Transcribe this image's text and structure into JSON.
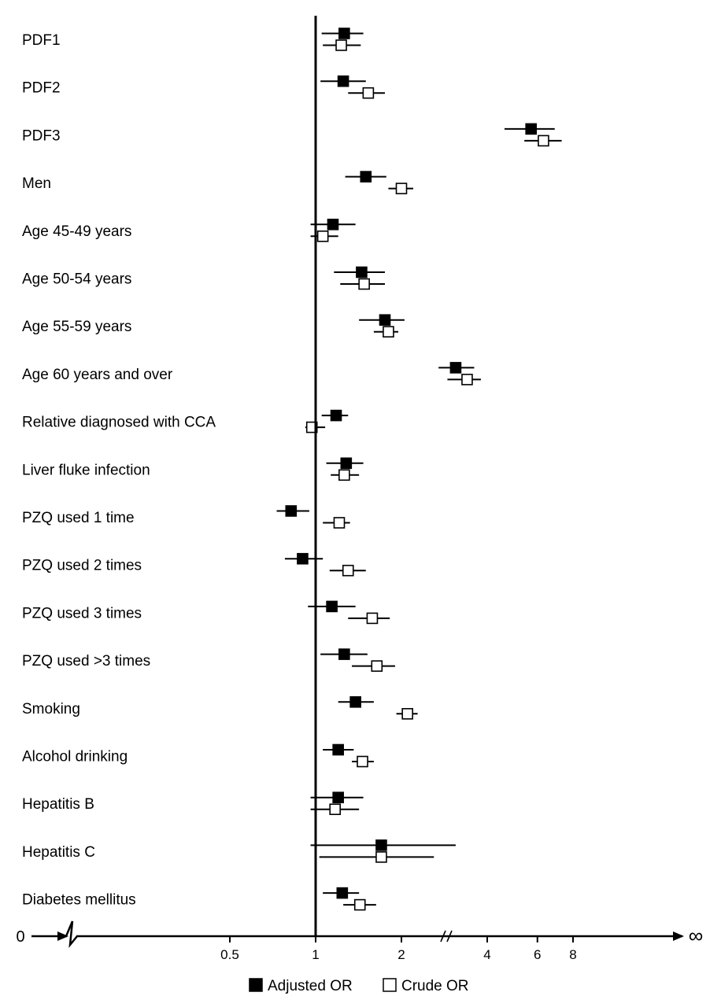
{
  "chart_data": {
    "type": "forest",
    "x_scale": "log2",
    "reference_line": 1,
    "legend": {
      "placement": "bottom-center",
      "adjusted_label": "Adjusted OR",
      "crude_label": "Crude OR"
    },
    "axis": {
      "left_end_label": "0",
      "right_end_label": "∞",
      "ticks": [
        {
          "value": 0.5,
          "label": "0.5"
        },
        {
          "value": 1,
          "label": "1"
        },
        {
          "value": 2,
          "label": "2"
        },
        {
          "value": 4,
          "label": "4"
        },
        {
          "value": 6,
          "label": "6"
        },
        {
          "value": 8,
          "label": "8"
        }
      ]
    },
    "series": [
      {
        "name": "Adjusted OR",
        "marker": "filled-square",
        "color": "#000000"
      },
      {
        "name": "Crude OR",
        "marker": "open-square",
        "color": "#000000"
      }
    ],
    "rows": [
      {
        "label": "PDF1",
        "adjusted": {
          "or": 1.26,
          "lo": 1.05,
          "hi": 1.47
        },
        "crude": {
          "or": 1.23,
          "lo": 1.06,
          "hi": 1.44
        }
      },
      {
        "label": "PDF2",
        "adjusted": {
          "or": 1.25,
          "lo": 1.04,
          "hi": 1.5
        },
        "crude": {
          "or": 1.53,
          "lo": 1.3,
          "hi": 1.75
        }
      },
      {
        "label": "PDF3",
        "adjusted": {
          "or": 5.7,
          "lo": 4.6,
          "hi": 6.9
        },
        "crude": {
          "or": 6.3,
          "lo": 5.4,
          "hi": 7.3
        }
      },
      {
        "label": "Men",
        "adjusted": {
          "or": 1.5,
          "lo": 1.27,
          "hi": 1.77
        },
        "crude": {
          "or": 2.0,
          "lo": 1.8,
          "hi": 2.2
        }
      },
      {
        "label": "Age 45-49 years",
        "adjusted": {
          "or": 1.15,
          "lo": 0.96,
          "hi": 1.38
        },
        "crude": {
          "or": 1.06,
          "lo": 0.96,
          "hi": 1.2
        }
      },
      {
        "label": "Age 50-54 years",
        "adjusted": {
          "or": 1.45,
          "lo": 1.16,
          "hi": 1.75
        },
        "crude": {
          "or": 1.48,
          "lo": 1.22,
          "hi": 1.75
        }
      },
      {
        "label": "Age 55-59 years",
        "adjusted": {
          "or": 1.75,
          "lo": 1.42,
          "hi": 2.05
        },
        "crude": {
          "or": 1.8,
          "lo": 1.6,
          "hi": 1.95
        }
      },
      {
        "label": "Age 60 years and over",
        "adjusted": {
          "or": 3.1,
          "lo": 2.7,
          "hi": 3.6
        },
        "crude": {
          "or": 3.4,
          "lo": 2.9,
          "hi": 3.8
        }
      },
      {
        "label": "Relative diagnosed with CCA",
        "adjusted": {
          "or": 1.18,
          "lo": 1.05,
          "hi": 1.3
        },
        "crude": {
          "or": 0.97,
          "lo": 0.92,
          "hi": 1.08
        }
      },
      {
        "label": "Liver fluke infection",
        "adjusted": {
          "or": 1.28,
          "lo": 1.09,
          "hi": 1.47
        },
        "crude": {
          "or": 1.26,
          "lo": 1.13,
          "hi": 1.42
        }
      },
      {
        "label": "PZQ used 1 time",
        "adjusted": {
          "or": 0.82,
          "lo": 0.73,
          "hi": 0.95
        },
        "crude": {
          "or": 1.21,
          "lo": 1.06,
          "hi": 1.32
        }
      },
      {
        "label": "PZQ used 2 times",
        "adjusted": {
          "or": 0.9,
          "lo": 0.78,
          "hi": 1.06
        },
        "crude": {
          "or": 1.3,
          "lo": 1.12,
          "hi": 1.5
        }
      },
      {
        "label": "PZQ used 3 times",
        "adjusted": {
          "or": 1.14,
          "lo": 0.94,
          "hi": 1.38
        },
        "crude": {
          "or": 1.58,
          "lo": 1.3,
          "hi": 1.82
        }
      },
      {
        "label": "PZQ used >3 times",
        "adjusted": {
          "or": 1.26,
          "lo": 1.04,
          "hi": 1.52
        },
        "crude": {
          "or": 1.64,
          "lo": 1.34,
          "hi": 1.9
        }
      },
      {
        "label": "Smoking",
        "adjusted": {
          "or": 1.38,
          "lo": 1.2,
          "hi": 1.6
        },
        "crude": {
          "or": 2.1,
          "lo": 1.92,
          "hi": 2.28
        }
      },
      {
        "label": "Alcohol drinking",
        "adjusted": {
          "or": 1.2,
          "lo": 1.06,
          "hi": 1.36
        },
        "crude": {
          "or": 1.46,
          "lo": 1.34,
          "hi": 1.6
        }
      },
      {
        "label": "Hepatitis B",
        "adjusted": {
          "or": 1.2,
          "lo": 0.96,
          "hi": 1.47
        },
        "crude": {
          "or": 1.17,
          "lo": 0.96,
          "hi": 1.42
        }
      },
      {
        "label": "Hepatitis C",
        "adjusted": {
          "or": 1.7,
          "lo": 0.96,
          "hi": 3.1
        },
        "crude": {
          "or": 1.7,
          "lo": 1.03,
          "hi": 2.6
        }
      },
      {
        "label": "Diabetes mellitus",
        "adjusted": {
          "or": 1.24,
          "lo": 1.06,
          "hi": 1.42
        },
        "crude": {
          "or": 1.43,
          "lo": 1.25,
          "hi": 1.63
        }
      }
    ]
  }
}
